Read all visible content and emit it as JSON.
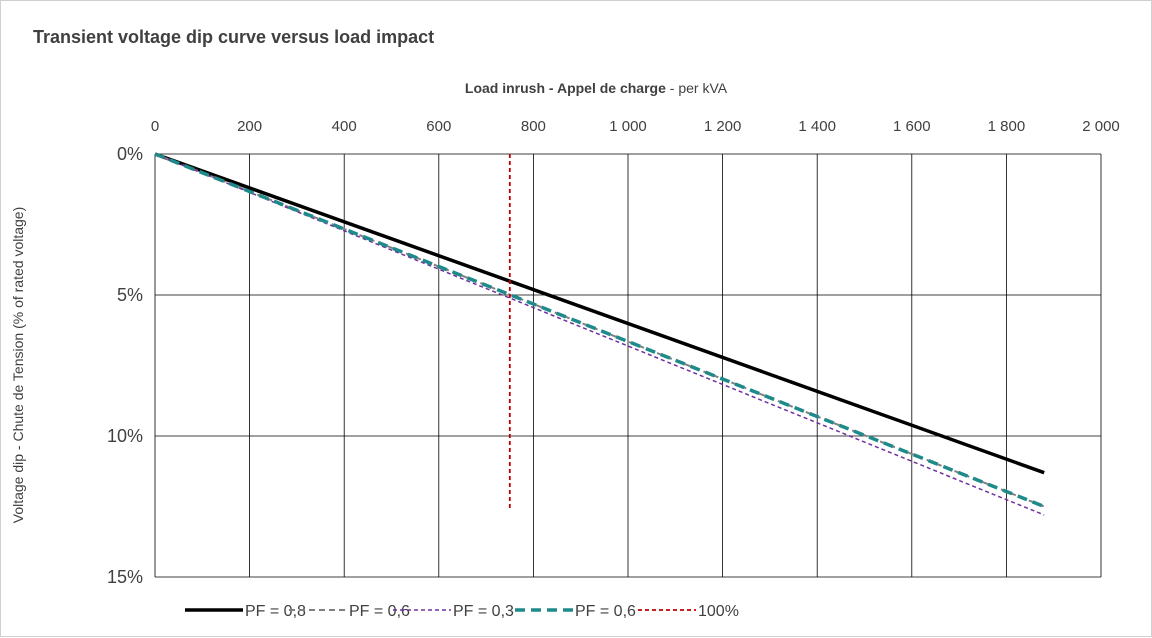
{
  "chart_data": {
    "type": "line",
    "title": "Transient voltage dip curve versus load impact",
    "xlabel": {
      "part1": "Load inrush - ",
      "part2": "Appel de charge",
      "part3": " - per kVA"
    },
    "ylabel": "Voltage dip - Chute de Tension  (% of rated voltage)",
    "x_axis_position": "top",
    "y_axis_inverted": true,
    "xlim": [
      0,
      2000
    ],
    "ylim": [
      0,
      15
    ],
    "x_ticks": [
      0,
      200,
      400,
      600,
      800,
      1000,
      1200,
      1400,
      1600,
      1800,
      2000
    ],
    "x_tick_labels": [
      "0",
      "200",
      "400",
      "600",
      "800",
      "1 000",
      "1 200",
      "1 400",
      "1 600",
      "1 800",
      "2 000"
    ],
    "y_ticks": [
      0,
      5,
      10,
      15
    ],
    "y_tick_labels": [
      "0%",
      "5%",
      "10%",
      "15%"
    ],
    "grid": true,
    "legend_position": "bottom",
    "series": [
      {
        "name": "PF = 0,8",
        "x": [
          0,
          1880
        ],
        "y": [
          0,
          11.3
        ],
        "color": "#000000",
        "style": "solid",
        "width": 3.5
      },
      {
        "name": "PF = 0,6",
        "x": [
          0,
          1880
        ],
        "y": [
          0,
          12.5
        ],
        "color": "#808080",
        "style": "dashed",
        "width": 2
      },
      {
        "name": "PF = 0,3",
        "x": [
          0,
          1880
        ],
        "y": [
          0,
          12.8
        ],
        "color": "#7030a0",
        "style": "dashed-fine",
        "width": 1.5
      },
      {
        "name": "PF = 0,6",
        "x": [
          0,
          1880
        ],
        "y": [
          0,
          12.5
        ],
        "color": "#1f8a8a",
        "style": "dashed-bold",
        "width": 3.5
      },
      {
        "name": "100%",
        "x": [
          750,
          750
        ],
        "y": [
          0,
          12.6
        ],
        "color": "#c00000",
        "style": "dashed-fine",
        "width": 1.8
      }
    ]
  }
}
